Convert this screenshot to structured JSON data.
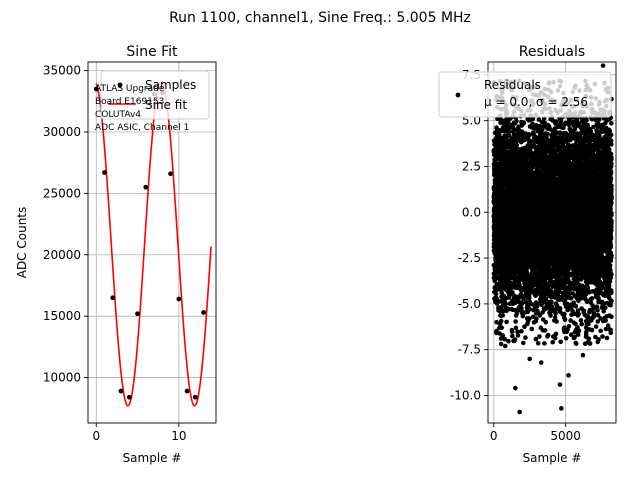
{
  "figure": {
    "suptitle": "Run 1100, channel1, Sine Freq.: 5.005 MHz"
  },
  "chart_data": [
    {
      "type": "line",
      "title": "Sine Fit",
      "xlabel": "Sample #",
      "ylabel": "ADC Counts",
      "xlim": [
        -1.0,
        14.5
      ],
      "ylim": [
        6300,
        35700
      ],
      "xticks": [
        0,
        10
      ],
      "yticks": [
        10000,
        15000,
        20000,
        25000,
        30000,
        35000
      ],
      "grid": true,
      "legend_position": "top-right",
      "annotation": [
        "ATLAS Upgrade",
        "Board E169153",
        "COLUTAv4",
        "ADC ASIC, Channel 1"
      ],
      "series": [
        {
          "name": "Samples",
          "kind": "scatter",
          "color": "#000000",
          "x": [
            0,
            1,
            2,
            3,
            4,
            5,
            6,
            7,
            8,
            9,
            10,
            11,
            12,
            13
          ],
          "y": [
            33500,
            26700,
            16500,
            8900,
            8400,
            15200,
            25500,
            33100,
            33200,
            26600,
            16400,
            8900,
            8400,
            15300
          ]
        },
        {
          "name": "Sine fit",
          "kind": "line",
          "color": "#ff0000",
          "model": {
            "offset": 20900,
            "amplitude": 13200,
            "period": 8.07,
            "peak_x": -0.2,
            "x_range": [
              0,
              13.9
            ]
          }
        }
      ]
    },
    {
      "type": "scatter",
      "title": "Residuals",
      "xlabel": "Sample #",
      "ylabel": "",
      "xlim": [
        -400,
        8500
      ],
      "ylim": [
        -11.5,
        8.2
      ],
      "xticks": [
        0,
        5000
      ],
      "yticks": [
        -10.0,
        -7.5,
        -5.0,
        -2.5,
        0.0,
        2.5,
        5.0,
        7.5
      ],
      "grid": true,
      "legend_position": "top-right",
      "series": [
        {
          "name": "Residuals",
          "legend_stats": "μ = 0.0, σ = 2.56",
          "color": "#000000",
          "n_points": 8192,
          "mean": 0.0,
          "std": 2.56,
          "x_range": [
            0,
            8191
          ],
          "outliers_x": [
            1500,
            1800,
            4600,
            4700,
            5200,
            3300,
            2500,
            6200,
            800,
            7600
          ],
          "outliers_y": [
            -9.6,
            -10.9,
            -9.4,
            -10.7,
            -8.9,
            -8.2,
            -8.0,
            -7.8,
            -7.3,
            8.0
          ]
        }
      ]
    }
  ]
}
